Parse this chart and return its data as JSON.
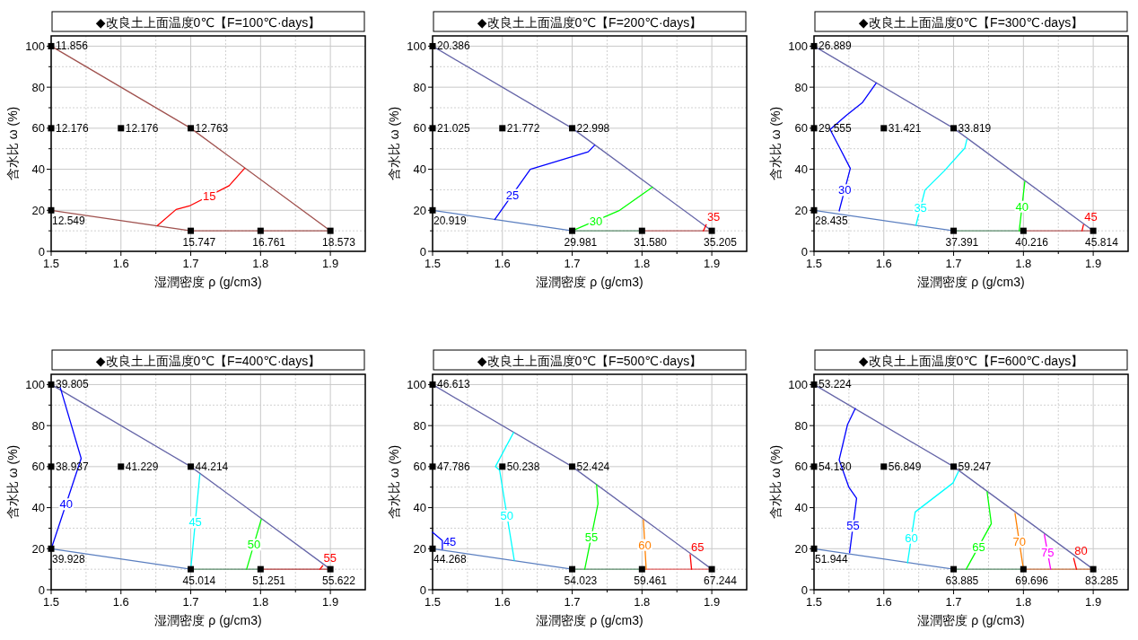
{
  "chart_data": [
    {
      "type": "line",
      "title": "◆改良土上面温度0℃【F=100℃·days】",
      "xlabel": "湿潤密度 ρ (g/cm3)",
      "ylabel": "含水比 ω (%)",
      "xlim": [
        1.5,
        1.95
      ],
      "ylim": [
        0,
        105
      ],
      "grid": true,
      "xticks": [
        1.5,
        {
          "value": 1.55,
          "label": null
        },
        1.6,
        {
          "value": 1.65,
          "label": null
        },
        1.7,
        {
          "value": 1.75,
          "label": null
        },
        1.8,
        {
          "value": 1.85,
          "label": null
        },
        1.9
      ],
      "yticks": [
        0,
        {
          "value": 10,
          "label": null
        },
        20,
        {
          "value": 30,
          "label": null
        },
        40,
        {
          "value": 50,
          "label": null
        },
        60,
        {
          "value": 70,
          "label": null
        },
        80,
        {
          "value": 90,
          "label": null
        },
        100
      ],
      "series": [
        {
          "type": "line",
          "color": "#a0524f",
          "x": [
            1.5,
            1.7,
            1.9
          ],
          "values": [
            100,
            60,
            10
          ]
        },
        {
          "type": "line",
          "color": "#a0524f",
          "x": [
            1.5,
            1.7,
            1.9
          ],
          "values": [
            20,
            10,
            10
          ]
        },
        {
          "type": "line",
          "name": "15",
          "color": "#ff0000",
          "x": [
            1.652,
            1.679,
            1.698,
            1.755,
            1.777
          ],
          "values": [
            12.5,
            20.4,
            22.1,
            32,
            40.4
          ]
        },
        {
          "type": "scatter",
          "marker": "square",
          "color": "#000000",
          "x": [
            1.5,
            1.5,
            1.6,
            1.7,
            1.5,
            1.7,
            1.8,
            1.9
          ],
          "values": [
            100,
            60,
            60,
            60,
            20,
            10,
            10,
            10
          ]
        }
      ],
      "annotations": [
        {
          "text": "11.856",
          "x": 1.5,
          "y": 100
        },
        {
          "text": "12.176",
          "x": 1.5,
          "y": 60
        },
        {
          "text": "12.176",
          "x": 1.6,
          "y": 60
        },
        {
          "text": "12.763",
          "x": 1.7,
          "y": 60
        },
        {
          "text": "12.549",
          "x": 1.5,
          "y": 20
        },
        {
          "text": "15.747",
          "x": 1.7,
          "y": 10
        },
        {
          "text": "16.761",
          "x": 1.8,
          "y": 10
        },
        {
          "text": "18.573",
          "x": 1.9,
          "y": 10
        }
      ]
    },
    {
      "type": "line",
      "title": "◆改良土上面温度0℃【F=200℃·days】",
      "xlabel": "湿潤密度 ρ (g/cm3)",
      "ylabel": "含水比 ω (%)",
      "xlim": [
        1.5,
        1.95
      ],
      "ylim": [
        0,
        105
      ],
      "grid": true,
      "xticks": [
        1.5,
        {
          "value": 1.55,
          "label": null
        },
        1.6,
        {
          "value": 1.65,
          "label": null
        },
        1.7,
        {
          "value": 1.75,
          "label": null
        },
        1.8,
        {
          "value": 1.85,
          "label": null
        },
        1.9
      ],
      "yticks": [
        0,
        {
          "value": 10,
          "label": null
        },
        20,
        {
          "value": 30,
          "label": null
        },
        40,
        {
          "value": 50,
          "label": null
        },
        60,
        {
          "value": 70,
          "label": null
        },
        80,
        {
          "value": 90,
          "label": null
        },
        100
      ],
      "series": [
        {
          "type": "line",
          "color": "#6666a8",
          "x": [
            1.5,
            1.7,
            1.9
          ],
          "values": [
            100,
            60,
            10
          ]
        },
        {
          "type": "line",
          "color": "#5b7fc0",
          "x": [
            1.5,
            1.7
          ],
          "values": [
            20,
            10
          ]
        },
        {
          "type": "line",
          "color": "#5a8a6a",
          "x": [
            1.7,
            1.8
          ],
          "values": [
            10,
            10
          ]
        },
        {
          "type": "line",
          "color": "#b05a5a",
          "x": [
            1.8,
            1.9
          ],
          "values": [
            10,
            10
          ]
        },
        {
          "type": "line",
          "name": "25",
          "color": "#0000ff",
          "x": [
            1.589,
            1.64,
            1.723,
            1.732
          ],
          "values": [
            15.5,
            40,
            48.5,
            51.7
          ]
        },
        {
          "type": "line",
          "name": "30",
          "color": "#00ff00",
          "x": [
            1.7,
            1.768,
            1.815
          ],
          "values": [
            10,
            20,
            31.3
          ]
        },
        {
          "type": "line",
          "name": "35",
          "color": "#ff0000",
          "x": [
            1.888,
            1.892
          ],
          "values": [
            10,
            13
          ]
        },
        {
          "type": "scatter",
          "marker": "square",
          "color": "#000000",
          "x": [
            1.5,
            1.5,
            1.6,
            1.7,
            1.5,
            1.7,
            1.8,
            1.9
          ],
          "values": [
            100,
            60,
            60,
            60,
            20,
            10,
            10,
            10
          ]
        }
      ],
      "annotations": [
        {
          "text": "20.386",
          "x": 1.5,
          "y": 100
        },
        {
          "text": "21.025",
          "x": 1.5,
          "y": 60
        },
        {
          "text": "21.772",
          "x": 1.6,
          "y": 60
        },
        {
          "text": "22.998",
          "x": 1.7,
          "y": 60
        },
        {
          "text": "20.919",
          "x": 1.5,
          "y": 20
        },
        {
          "text": "29.981",
          "x": 1.7,
          "y": 10
        },
        {
          "text": "31.580",
          "x": 1.8,
          "y": 10
        },
        {
          "text": "35.205",
          "x": 1.9,
          "y": 10
        }
      ]
    },
    {
      "type": "line",
      "title": "◆改良土上面温度0℃【F=300℃·days】",
      "xlabel": "湿潤密度 ρ (g/cm3)",
      "ylabel": "含水比 ω (%)",
      "xlim": [
        1.5,
        1.95
      ],
      "ylim": [
        0,
        105
      ],
      "grid": true,
      "xticks": [
        1.5,
        {
          "value": 1.55,
          "label": null
        },
        1.6,
        {
          "value": 1.65,
          "label": null
        },
        1.7,
        {
          "value": 1.75,
          "label": null
        },
        1.8,
        {
          "value": 1.85,
          "label": null
        },
        1.9
      ],
      "yticks": [
        0,
        {
          "value": 10,
          "label": null
        },
        20,
        {
          "value": 30,
          "label": null
        },
        40,
        {
          "value": 50,
          "label": null
        },
        60,
        {
          "value": 70,
          "label": null
        },
        80,
        {
          "value": 90,
          "label": null
        },
        100
      ],
      "series": [
        {
          "type": "line",
          "color": "#6666a8",
          "x": [
            1.5,
            1.7,
            1.9
          ],
          "values": [
            100,
            60,
            10
          ]
        },
        {
          "type": "line",
          "color": "#5b7fc0",
          "x": [
            1.5,
            1.7
          ],
          "values": [
            20,
            10
          ]
        },
        {
          "type": "line",
          "color": "#5a8a6a",
          "x": [
            1.7,
            1.8
          ],
          "values": [
            10,
            10
          ]
        },
        {
          "type": "line",
          "color": "#b05a5a",
          "x": [
            1.8,
            1.9
          ],
          "values": [
            10,
            10
          ]
        },
        {
          "type": "line",
          "name": "30",
          "color": "#0000ff",
          "x": [
            1.536,
            1.552,
            1.536,
            1.523,
            1.546,
            1.569,
            1.589
          ],
          "values": [
            19.7,
            40.4,
            51,
            59.4,
            66.2,
            72.4,
            82
          ]
        },
        {
          "type": "line",
          "name": "35",
          "color": "#00ffff",
          "x": [
            1.646,
            1.659,
            1.686,
            1.716,
            1.719
          ],
          "values": [
            12.7,
            29.9,
            39,
            50.3,
            54.5
          ]
        },
        {
          "type": "line",
          "name": "40",
          "color": "#00ff00",
          "x": [
            1.794,
            1.802
          ],
          "values": [
            10,
            34
          ]
        },
        {
          "type": "line",
          "name": "45",
          "color": "#ff0000",
          "x": [
            1.884,
            1.886
          ],
          "values": [
            10,
            13
          ]
        },
        {
          "type": "scatter",
          "marker": "square",
          "color": "#000000",
          "x": [
            1.5,
            1.5,
            1.6,
            1.7,
            1.5,
            1.7,
            1.8,
            1.9
          ],
          "values": [
            100,
            60,
            60,
            60,
            20,
            10,
            10,
            10
          ]
        }
      ],
      "annotations": [
        {
          "text": "26.889",
          "x": 1.5,
          "y": 100
        },
        {
          "text": "29.555",
          "x": 1.5,
          "y": 60
        },
        {
          "text": "31.421",
          "x": 1.6,
          "y": 60
        },
        {
          "text": "33.819",
          "x": 1.7,
          "y": 60
        },
        {
          "text": "28.435",
          "x": 1.5,
          "y": 20
        },
        {
          "text": "37.391",
          "x": 1.7,
          "y": 10
        },
        {
          "text": "40.216",
          "x": 1.8,
          "y": 10
        },
        {
          "text": "45.814",
          "x": 1.9,
          "y": 10
        }
      ]
    },
    {
      "type": "line",
      "title": "◆改良土上面温度0℃【F=400℃·days】",
      "xlabel": "湿潤密度 ρ (g/cm3)",
      "ylabel": "含水比 ω (%)",
      "xlim": [
        1.5,
        1.95
      ],
      "ylim": [
        0,
        105
      ],
      "grid": true,
      "xticks": [
        1.5,
        {
          "value": 1.55,
          "label": null
        },
        1.6,
        {
          "value": 1.65,
          "label": null
        },
        1.7,
        {
          "value": 1.75,
          "label": null
        },
        1.8,
        {
          "value": 1.85,
          "label": null
        },
        1.9
      ],
      "yticks": [
        0,
        {
          "value": 10,
          "label": null
        },
        20,
        {
          "value": 30,
          "label": null
        },
        40,
        {
          "value": 50,
          "label": null
        },
        60,
        {
          "value": 70,
          "label": null
        },
        80,
        {
          "value": 90,
          "label": null
        },
        100
      ],
      "series": [
        {
          "type": "line",
          "color": "#6666a8",
          "x": [
            1.5,
            1.7,
            1.9
          ],
          "values": [
            100,
            60,
            10
          ]
        },
        {
          "type": "line",
          "color": "#5b7fc0",
          "x": [
            1.5,
            1.7
          ],
          "values": [
            20,
            10
          ]
        },
        {
          "type": "line",
          "color": "#5a8a6a",
          "x": [
            1.7,
            1.8
          ],
          "values": [
            10,
            10
          ]
        },
        {
          "type": "line",
          "color": "#b03a3a",
          "x": [
            1.8,
            1.9
          ],
          "values": [
            10,
            10
          ]
        },
        {
          "type": "line",
          "name": "40",
          "color": "#0000ff",
          "x": [
            1.5,
            1.543,
            1.513
          ],
          "values": [
            19.8,
            64,
            98.6
          ]
        },
        {
          "type": "line",
          "name": "45",
          "color": "#00ffff",
          "x": [
            1.7,
            1.713
          ],
          "values": [
            10,
            56.2
          ]
        },
        {
          "type": "line",
          "name": "50",
          "color": "#00ff00",
          "x": [
            1.78,
            1.801
          ],
          "values": [
            10,
            34.3
          ]
        },
        {
          "type": "line",
          "name": "55",
          "color": "#ff0000",
          "x": [
            1.885,
            1.889
          ],
          "values": [
            10,
            11.7
          ]
        },
        {
          "type": "scatter",
          "marker": "square",
          "color": "#000000",
          "x": [
            1.5,
            1.5,
            1.6,
            1.7,
            1.5,
            1.7,
            1.8,
            1.9
          ],
          "values": [
            100,
            60,
            60,
            60,
            20,
            10,
            10,
            10
          ]
        }
      ],
      "annotations": [
        {
          "text": "39.805",
          "x": 1.5,
          "y": 100
        },
        {
          "text": "38.937",
          "x": 1.5,
          "y": 60
        },
        {
          "text": "41.229",
          "x": 1.6,
          "y": 60
        },
        {
          "text": "44.214",
          "x": 1.7,
          "y": 60
        },
        {
          "text": "39.928",
          "x": 1.5,
          "y": 20
        },
        {
          "text": "45.014",
          "x": 1.7,
          "y": 10
        },
        {
          "text": "51.251",
          "x": 1.8,
          "y": 10
        },
        {
          "text": "55.622",
          "x": 1.9,
          "y": 10
        }
      ]
    },
    {
      "type": "line",
      "title": "◆改良土上面温度0℃【F=500℃·days】",
      "xlabel": "湿潤密度 ρ (g/cm3)",
      "ylabel": "含水比 ω (%)",
      "xlim": [
        1.5,
        1.95
      ],
      "ylim": [
        0,
        105
      ],
      "grid": true,
      "xticks": [
        1.5,
        {
          "value": 1.55,
          "label": null
        },
        1.6,
        {
          "value": 1.65,
          "label": null
        },
        1.7,
        {
          "value": 1.75,
          "label": null
        },
        1.8,
        {
          "value": 1.85,
          "label": null
        },
        1.9
      ],
      "yticks": [
        0,
        {
          "value": 10,
          "label": null
        },
        20,
        {
          "value": 30,
          "label": null
        },
        40,
        {
          "value": 50,
          "label": null
        },
        60,
        {
          "value": 70,
          "label": null
        },
        80,
        {
          "value": 90,
          "label": null
        },
        100
      ],
      "series": [
        {
          "type": "line",
          "color": "#6666a8",
          "x": [
            1.5,
            1.7,
            1.9
          ],
          "values": [
            100,
            60,
            10
          ]
        },
        {
          "type": "line",
          "color": "#5b7fc0",
          "x": [
            1.5,
            1.7
          ],
          "values": [
            20,
            10
          ]
        },
        {
          "type": "line",
          "color": "#5a8a6a",
          "x": [
            1.7,
            1.8
          ],
          "values": [
            10,
            10
          ]
        },
        {
          "type": "line",
          "color": "#e06060",
          "x": [
            1.8,
            1.9
          ],
          "values": [
            10,
            10
          ]
        },
        {
          "type": "line",
          "name": "45",
          "color": "#0000ff",
          "x": [
            1.5,
            1.514,
            1.514
          ],
          "values": [
            28,
            24,
            19.7
          ]
        },
        {
          "type": "line",
          "name": "50",
          "color": "#00ffff",
          "x": [
            1.617,
            1.596,
            1.59,
            1.616
          ],
          "values": [
            14.4,
            58.3,
            60,
            76.6
          ]
        },
        {
          "type": "line",
          "name": "55",
          "color": "#00ff00",
          "x": [
            1.718,
            1.737,
            1.735
          ],
          "values": [
            10,
            41.9,
            51.1
          ]
        },
        {
          "type": "line",
          "name": "60",
          "color": "#ff8000",
          "x": [
            1.806,
            1.802
          ],
          "values": [
            10,
            34
          ]
        },
        {
          "type": "line",
          "name": "65",
          "color": "#ff0000",
          "x": [
            1.871,
            1.869
          ],
          "values": [
            10,
            17.1
          ]
        },
        {
          "type": "scatter",
          "marker": "square",
          "color": "#000000",
          "x": [
            1.5,
            1.5,
            1.6,
            1.7,
            1.5,
            1.7,
            1.8,
            1.9
          ],
          "values": [
            100,
            60,
            60,
            60,
            20,
            10,
            10,
            10
          ]
        }
      ],
      "annotations": [
        {
          "text": "46.613",
          "x": 1.5,
          "y": 100
        },
        {
          "text": "47.786",
          "x": 1.5,
          "y": 60
        },
        {
          "text": "50.238",
          "x": 1.6,
          "y": 60
        },
        {
          "text": "52.424",
          "x": 1.7,
          "y": 60
        },
        {
          "text": "44.268",
          "x": 1.5,
          "y": 20
        },
        {
          "text": "54.023",
          "x": 1.7,
          "y": 10
        },
        {
          "text": "59.461",
          "x": 1.8,
          "y": 10
        },
        {
          "text": "67.244",
          "x": 1.9,
          "y": 10
        }
      ]
    },
    {
      "type": "line",
      "title": "◆改良土上面温度0℃【F=600℃·days】",
      "xlabel": "湿潤密度 ρ (g/cm3)",
      "ylabel": "含水比 ω (%)",
      "xlim": [
        1.5,
        1.95
      ],
      "ylim": [
        0,
        105
      ],
      "grid": true,
      "xticks": [
        1.5,
        {
          "value": 1.55,
          "label": null
        },
        1.6,
        {
          "value": 1.65,
          "label": null
        },
        1.7,
        {
          "value": 1.75,
          "label": null
        },
        1.8,
        {
          "value": 1.85,
          "label": null
        },
        1.9
      ],
      "yticks": [
        0,
        {
          "value": 10,
          "label": null
        },
        20,
        {
          "value": 30,
          "label": null
        },
        40,
        {
          "value": 50,
          "label": null
        },
        60,
        {
          "value": 70,
          "label": null
        },
        80,
        {
          "value": 90,
          "label": null
        },
        100
      ],
      "series": [
        {
          "type": "line",
          "color": "#6666a8",
          "x": [
            1.5,
            1.7,
            1.9
          ],
          "values": [
            100,
            60,
            10
          ]
        },
        {
          "type": "line",
          "color": "#5b7fc0",
          "x": [
            1.5,
            1.7
          ],
          "values": [
            20,
            10
          ]
        },
        {
          "type": "line",
          "color": "#5a8a6a",
          "x": [
            1.7,
            1.8
          ],
          "values": [
            10,
            10
          ]
        },
        {
          "type": "line",
          "color": "#c07040",
          "x": [
            1.8,
            1.9
          ],
          "values": [
            10,
            10
          ]
        },
        {
          "type": "line",
          "name": "55",
          "color": "#0000ff",
          "x": [
            1.551,
            1.561,
            1.55,
            1.536,
            1.548,
            1.559
          ],
          "values": [
            18.1,
            44.6,
            49.9,
            63.3,
            80.5,
            88.3
          ]
        },
        {
          "type": "line",
          "name": "60",
          "color": "#00ffff",
          "x": [
            1.634,
            1.645,
            1.699,
            1.707
          ],
          "values": [
            13.1,
            37.9,
            52,
            57.6
          ]
        },
        {
          "type": "line",
          "name": "65",
          "color": "#00ff00",
          "x": [
            1.718,
            1.754,
            1.748
          ],
          "values": [
            10,
            32.2,
            47.7
          ]
        },
        {
          "type": "line",
          "name": "70",
          "color": "#ff8000",
          "x": [
            1.8,
            1.788
          ],
          "values": [
            10,
            37.1
          ]
        },
        {
          "type": "line",
          "name": "75",
          "color": "#ff00ff",
          "x": [
            1.839,
            1.83
          ],
          "values": [
            10,
            26.8
          ]
        },
        {
          "type": "line",
          "name": "80",
          "color": "#ff0000",
          "x": [
            1.876,
            1.872
          ],
          "values": [
            10,
            15.3
          ]
        },
        {
          "type": "scatter",
          "marker": "square",
          "color": "#000000",
          "x": [
            1.5,
            1.5,
            1.6,
            1.7,
            1.5,
            1.7,
            1.8,
            1.9
          ],
          "values": [
            100,
            60,
            60,
            60,
            20,
            10,
            10,
            10
          ]
        }
      ],
      "annotations": [
        {
          "text": "53.224",
          "x": 1.5,
          "y": 100
        },
        {
          "text": "54.130",
          "x": 1.5,
          "y": 60
        },
        {
          "text": "56.849",
          "x": 1.6,
          "y": 60
        },
        {
          "text": "59.247",
          "x": 1.7,
          "y": 60
        },
        {
          "text": "51.944",
          "x": 1.5,
          "y": 20
        },
        {
          "text": "63.885",
          "x": 1.7,
          "y": 10
        },
        {
          "text": "69.696",
          "x": 1.8,
          "y": 10
        },
        {
          "text": "83.285",
          "x": 1.9,
          "y": 10
        }
      ]
    }
  ]
}
